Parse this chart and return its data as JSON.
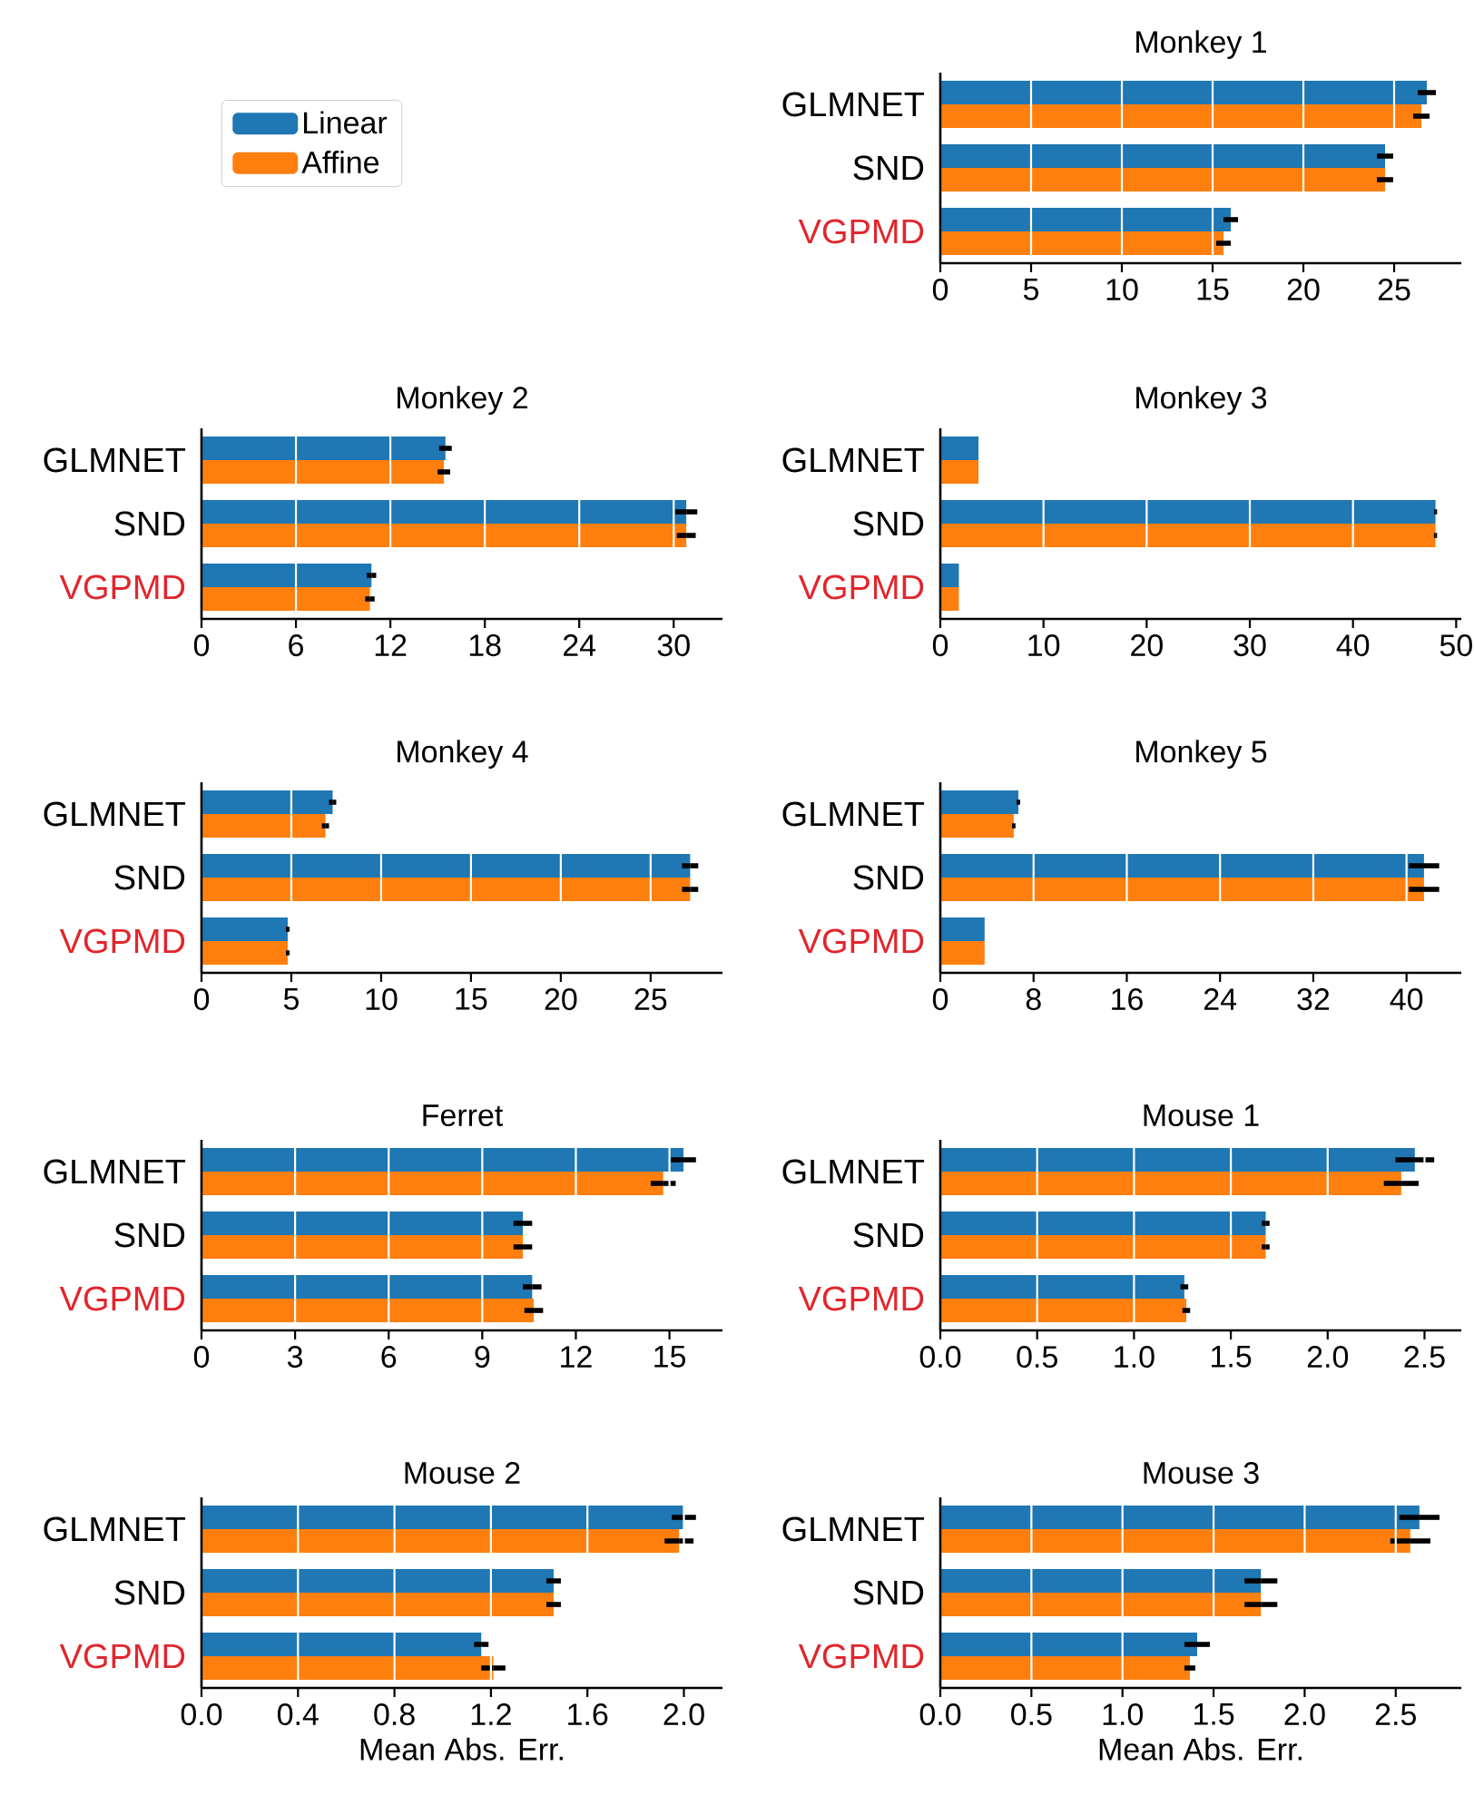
{
  "chart_data": [
    {
      "type": "bar",
      "orientation": "horizontal",
      "title": "Monkey 1",
      "categories": [
        "GLMNET",
        "SND",
        "VGPMD"
      ],
      "legend": "left",
      "grid": "x",
      "xlim": [
        0,
        28.7
      ],
      "xticks": [
        0,
        5,
        10,
        15,
        20,
        25
      ],
      "series": [
        {
          "name": "Linear",
          "color": "#1f77b4",
          "values": [
            26.8,
            24.5,
            16.0
          ],
          "errors": [
            0.5,
            0.45,
            0.4
          ]
        },
        {
          "name": "Affine",
          "color": "#ff7f0e",
          "values": [
            26.5,
            24.5,
            15.6
          ],
          "errors": [
            0.45,
            0.45,
            0.4
          ]
        }
      ]
    },
    {
      "type": "bar",
      "orientation": "horizontal",
      "title": "Monkey 2",
      "categories": [
        "GLMNET",
        "SND",
        "VGPMD"
      ],
      "grid": "x",
      "xlim": [
        0,
        33.1
      ],
      "xticks": [
        0,
        6,
        12,
        18,
        24,
        30
      ],
      "series": [
        {
          "color": "#1f77b4",
          "values": [
            15.5,
            30.8,
            10.8
          ],
          "errors": [
            0.4,
            0.7,
            0.3
          ]
        },
        {
          "color": "#ff7f0e",
          "values": [
            15.4,
            30.8,
            10.7
          ],
          "errors": [
            0.4,
            0.6,
            0.3
          ]
        }
      ]
    },
    {
      "type": "bar",
      "orientation": "horizontal",
      "title": "Monkey 3",
      "categories": [
        "GLMNET",
        "SND",
        "VGPMD"
      ],
      "grid": "x",
      "xlim": [
        0,
        50.5
      ],
      "xticks": [
        0,
        10,
        20,
        30,
        40,
        50
      ],
      "series": [
        {
          "color": "#1f77b4",
          "values": [
            3.7,
            48.0,
            1.8
          ],
          "errors": [
            null,
            0.15,
            null
          ]
        },
        {
          "color": "#ff7f0e",
          "values": [
            3.7,
            48.0,
            1.8
          ],
          "errors": [
            null,
            0.15,
            null
          ]
        }
      ]
    },
    {
      "type": "bar",
      "orientation": "horizontal",
      "title": "Monkey 4",
      "categories": [
        "GLMNET",
        "SND",
        "VGPMD"
      ],
      "grid": "x",
      "xlim": [
        0,
        29.0
      ],
      "xticks": [
        0,
        5,
        10,
        15,
        20,
        25
      ],
      "series": [
        {
          "color": "#1f77b4",
          "values": [
            7.3,
            27.2,
            4.8
          ],
          "errors": [
            0.2,
            0.45,
            0.1
          ]
        },
        {
          "color": "#ff7f0e",
          "values": [
            6.9,
            27.2,
            4.8
          ],
          "errors": [
            0.2,
            0.45,
            0.1
          ]
        }
      ]
    },
    {
      "type": "bar",
      "orientation": "horizontal",
      "title": "Monkey 5",
      "categories": [
        "GLMNET",
        "SND",
        "VGPMD"
      ],
      "grid": "x",
      "xlim": [
        0,
        44.7
      ],
      "xticks": [
        0,
        8,
        16,
        24,
        32,
        40
      ],
      "series": [
        {
          "color": "#1f77b4",
          "values": [
            6.7,
            41.5,
            3.8
          ],
          "errors": [
            0.15,
            1.3,
            null
          ]
        },
        {
          "color": "#ff7f0e",
          "values": [
            6.3,
            41.5,
            3.8
          ],
          "errors": [
            0.15,
            1.3,
            null
          ]
        }
      ]
    },
    {
      "type": "bar",
      "orientation": "horizontal",
      "title": "Ferret",
      "categories": [
        "GLMNET",
        "SND",
        "VGPMD"
      ],
      "grid": "x",
      "xlim": [
        0,
        16.7
      ],
      "xticks": [
        0,
        3,
        6,
        9,
        12,
        15
      ],
      "series": [
        {
          "color": "#1f77b4",
          "values": [
            15.45,
            10.3,
            10.6
          ],
          "errors": [
            0.4,
            0.3,
            0.3
          ]
        },
        {
          "color": "#ff7f0e",
          "values": [
            14.8,
            10.3,
            10.65
          ],
          "errors": [
            0.4,
            0.3,
            0.3
          ]
        }
      ]
    },
    {
      "type": "bar",
      "orientation": "horizontal",
      "title": "Mouse 1",
      "categories": [
        "GLMNET",
        "SND",
        "VGPMD"
      ],
      "grid": "x",
      "xlim": [
        0,
        2.69
      ],
      "xticks": [
        {
          "value": 0,
          "label": "0.0"
        },
        0.5,
        {
          "value": 1,
          "label": "1.0"
        },
        1.5,
        {
          "value": 2,
          "label": "2.0"
        },
        2.5
      ],
      "series": [
        {
          "color": "#1f77b4",
          "values": [
            2.45,
            1.68,
            1.26
          ],
          "errors": [
            0.1,
            0.02,
            0.02
          ]
        },
        {
          "color": "#ff7f0e",
          "values": [
            2.38,
            1.68,
            1.27
          ],
          "errors": [
            0.09,
            0.02,
            0.02
          ]
        }
      ]
    },
    {
      "type": "bar",
      "orientation": "horizontal",
      "title": "Mouse 2",
      "xlabel": "Mean Abs. Err.",
      "categories": [
        "GLMNET",
        "SND",
        "VGPMD"
      ],
      "grid": "x",
      "xlim": [
        0,
        2.16
      ],
      "xticks": [
        {
          "value": 0,
          "label": "0.0"
        },
        0.4,
        0.8,
        1.2,
        1.6,
        {
          "value": 2,
          "label": "2.0"
        }
      ],
      "series": [
        {
          "color": "#1f77b4",
          "values": [
            2.0,
            1.46,
            1.16
          ],
          "errors": [
            0.05,
            0.03,
            0.03
          ]
        },
        {
          "color": "#ff7f0e",
          "values": [
            1.98,
            1.46,
            1.21
          ],
          "errors": [
            0.06,
            0.03,
            0.05
          ]
        }
      ]
    },
    {
      "type": "bar",
      "orientation": "horizontal",
      "title": "Mouse 3",
      "xlabel": "Mean Abs. Err.",
      "categories": [
        "GLMNET",
        "SND",
        "VGPMD"
      ],
      "grid": "x",
      "xlim": [
        0,
        2.86
      ],
      "xticks": [
        {
          "value": 0,
          "label": "0.0"
        },
        0.5,
        {
          "value": 1,
          "label": "1.0"
        },
        1.5,
        {
          "value": 2,
          "label": "2.0"
        },
        2.5
      ],
      "series": [
        {
          "color": "#1f77b4",
          "values": [
            2.63,
            1.76,
            1.41
          ],
          "errors": [
            0.11,
            0.09,
            0.07
          ]
        },
        {
          "color": "#ff7f0e",
          "values": [
            2.58,
            1.76,
            1.37
          ],
          "errors": [
            0.11,
            0.09,
            0.03
          ]
        }
      ]
    }
  ]
}
